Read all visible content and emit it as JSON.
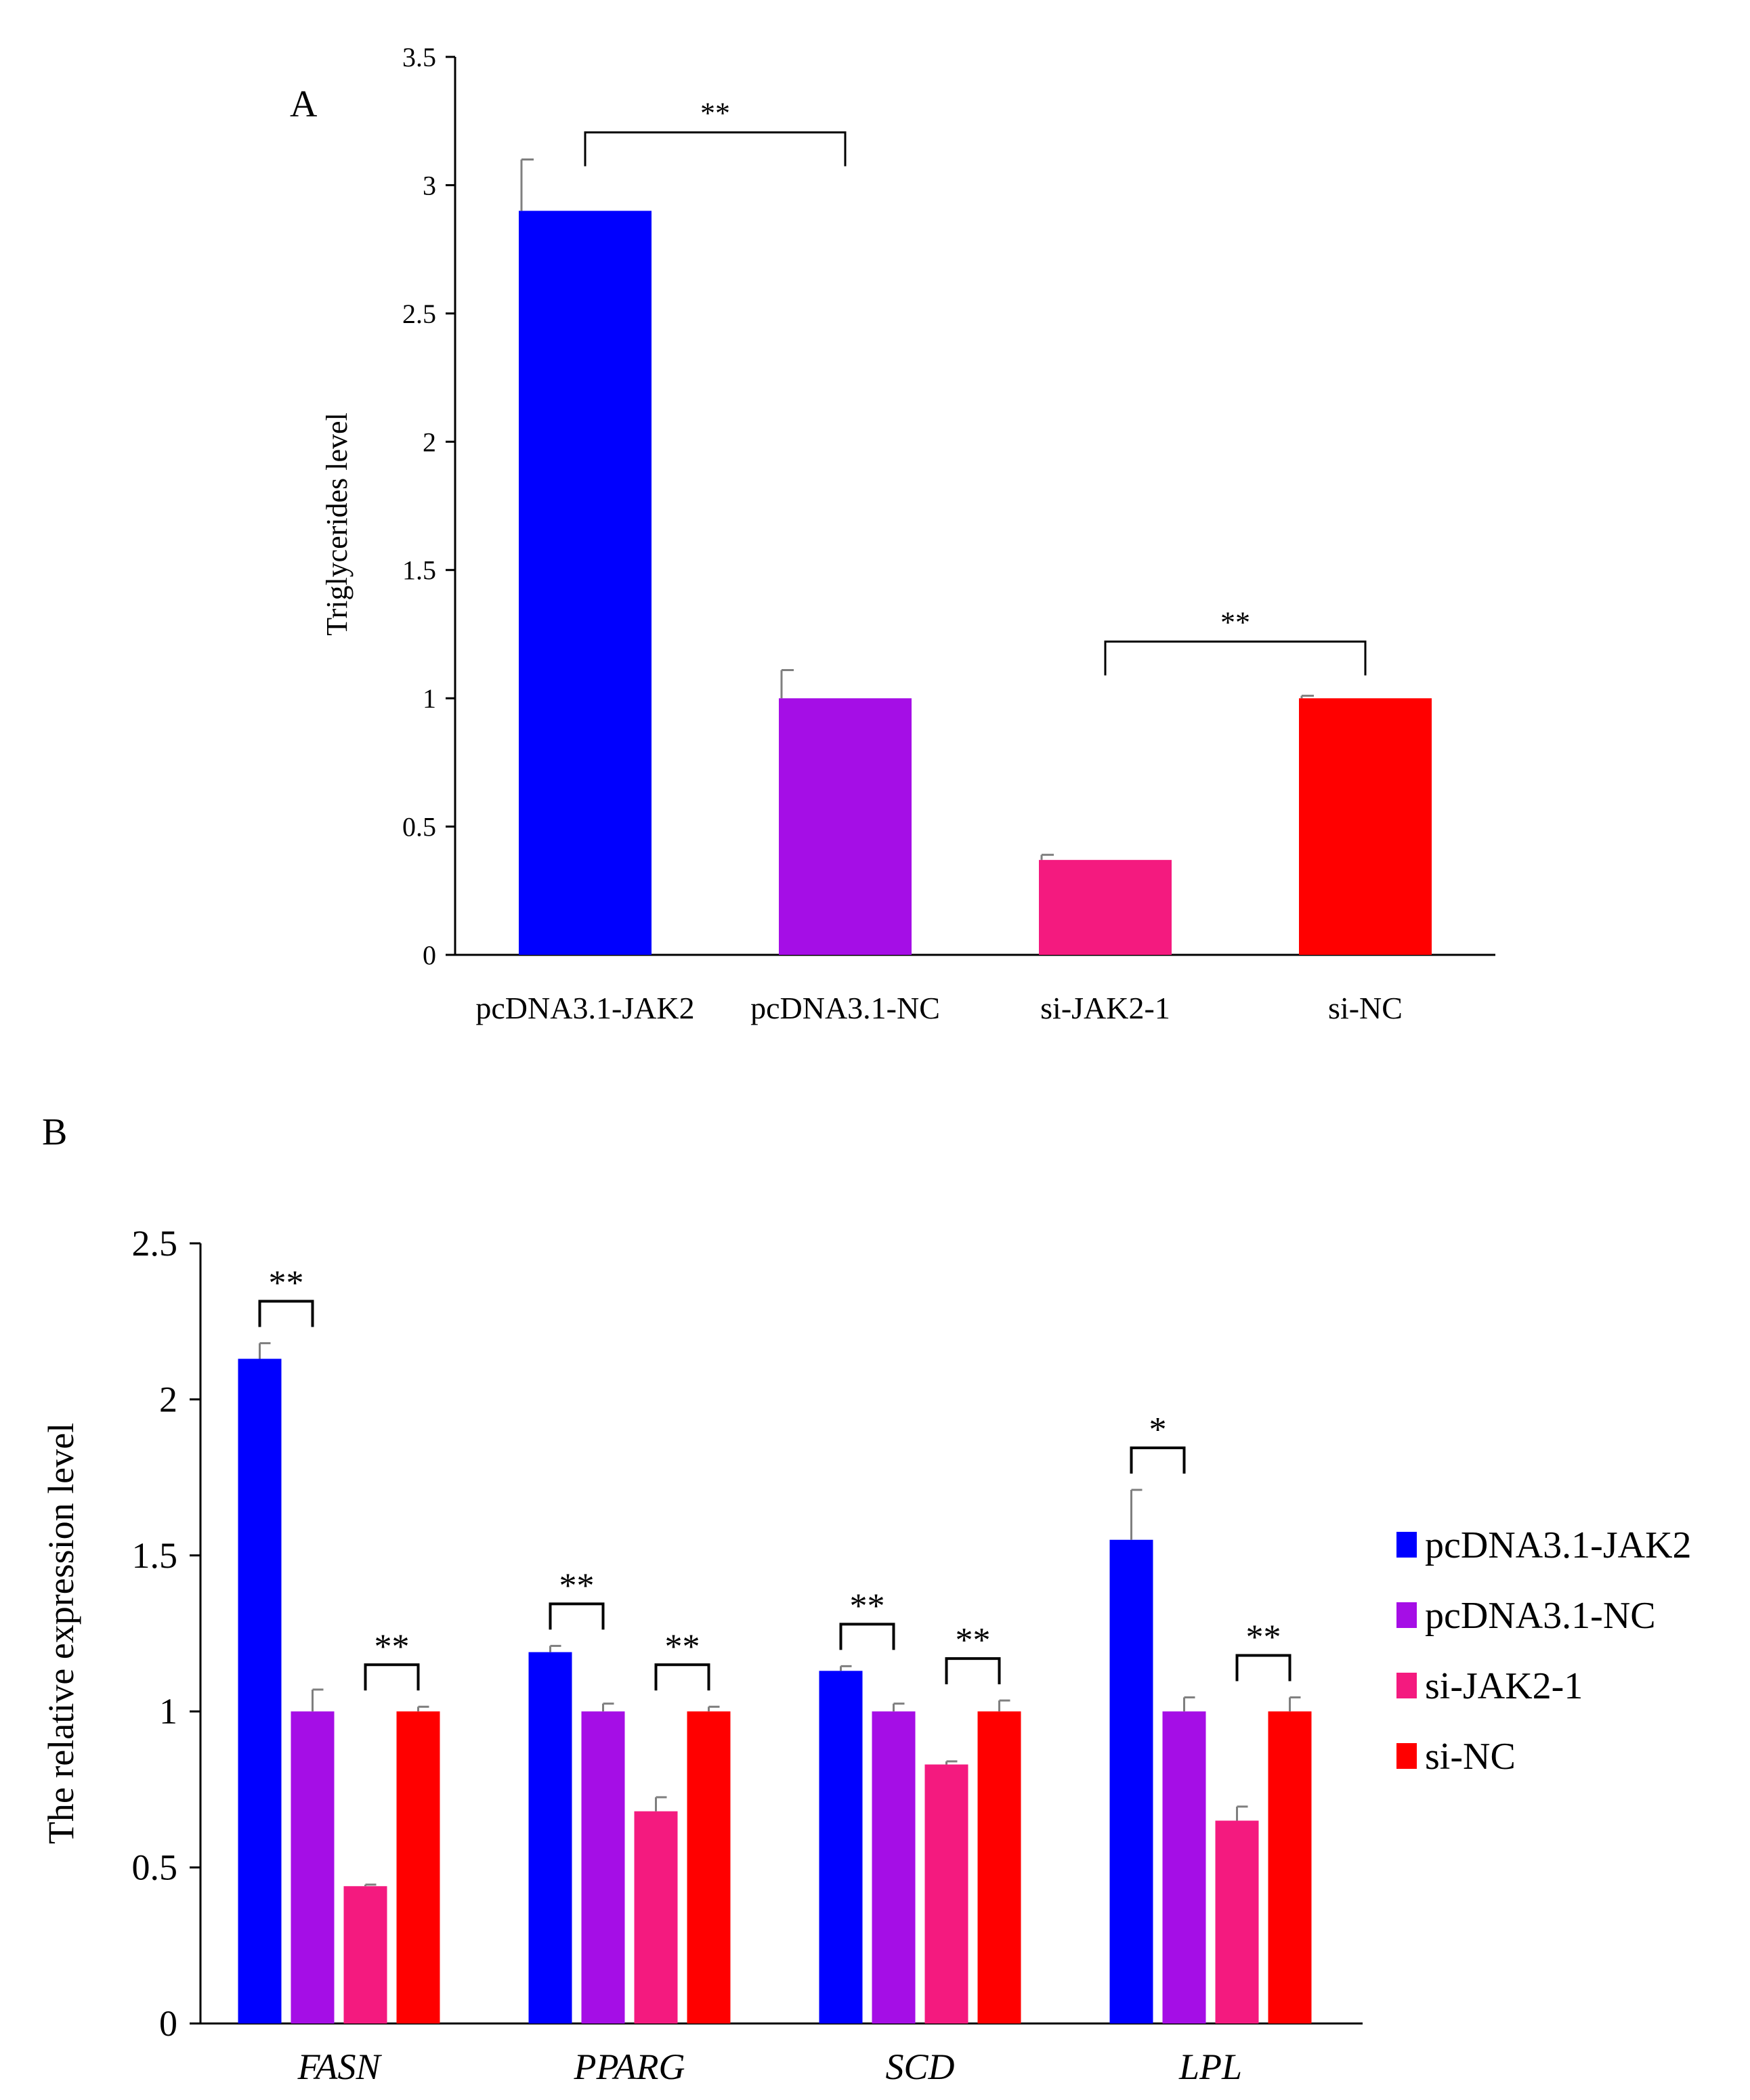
{
  "chart_data": [
    {
      "panel_label": "A",
      "type": "bar",
      "title": "",
      "xlabel": "",
      "ylabel": "Triglycerides level",
      "ylim": [
        0,
        3.5
      ],
      "yticks": [
        "0",
        "0.5",
        "1",
        "1.5",
        "2",
        "2.5",
        "3",
        "3.5"
      ],
      "categories": [
        "pcDNA3.1-JAK2",
        "pcDNA3.1-NC",
        "si-JAK2-1",
        "si-NC"
      ],
      "values": [
        2.9,
        1.0,
        0.37,
        1.0
      ],
      "errors": [
        0.2,
        0.11,
        0.02,
        0.01
      ],
      "colors": [
        "#0000FF",
        "#A50EE6",
        "#F41A7F",
        "#FF0000"
      ],
      "significance": [
        {
          "from": 0,
          "to": 1,
          "label": "**"
        },
        {
          "from": 2,
          "to": 3,
          "label": "**"
        }
      ],
      "grid": false
    },
    {
      "panel_label": "B",
      "type": "bar",
      "title": "",
      "xlabel": "",
      "ylabel": "The relative expression level",
      "ylim": [
        0,
        2.5
      ],
      "yticks": [
        "0",
        "0.5",
        "1",
        "1.5",
        "2",
        "2.5"
      ],
      "categories": [
        "FASN",
        "PPARG",
        "SCD",
        "LPL"
      ],
      "series": [
        {
          "name": "pcDNA3.1-JAK2",
          "color": "#0000FF",
          "values": [
            2.13,
            1.19,
            1.13,
            1.55
          ],
          "errors": [
            0.05,
            0.02,
            0.015,
            0.16
          ]
        },
        {
          "name": "pcDNA3.1-NC",
          "color": "#A50EE6",
          "values": [
            1.0,
            1.0,
            1.0,
            1.0
          ],
          "errors": [
            0.07,
            0.025,
            0.025,
            0.045
          ]
        },
        {
          "name": "si-JAK2-1",
          "color": "#F41A7F",
          "values": [
            0.44,
            0.68,
            0.83,
            0.65
          ],
          "errors": [
            0.005,
            0.045,
            0.01,
            0.045
          ]
        },
        {
          "name": "si-NC",
          "color": "#FF0000",
          "values": [
            1.0,
            1.0,
            1.0,
            1.0
          ],
          "errors": [
            0.015,
            0.015,
            0.035,
            0.045
          ]
        }
      ],
      "significance": [
        {
          "category": 0,
          "from": 0,
          "to": 1,
          "label": "**"
        },
        {
          "category": 0,
          "from": 2,
          "to": 3,
          "label": "**"
        },
        {
          "category": 1,
          "from": 0,
          "to": 1,
          "label": "**"
        },
        {
          "category": 1,
          "from": 2,
          "to": 3,
          "label": "**"
        },
        {
          "category": 2,
          "from": 0,
          "to": 1,
          "label": "**"
        },
        {
          "category": 2,
          "from": 2,
          "to": 3,
          "label": "**"
        },
        {
          "category": 3,
          "from": 0,
          "to": 1,
          "label": "*"
        },
        {
          "category": 3,
          "from": 2,
          "to": 3,
          "label": "**"
        }
      ],
      "legend_position": "right",
      "grid": false
    }
  ]
}
